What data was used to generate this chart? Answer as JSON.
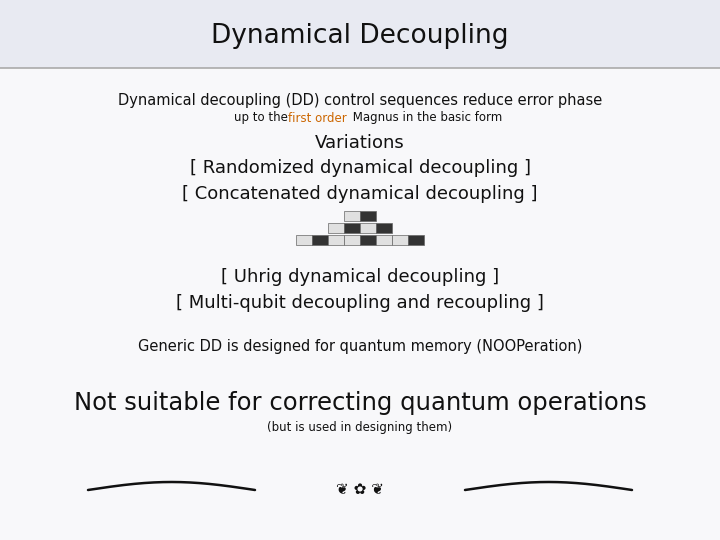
{
  "title": "Dynamical Decoupling",
  "title_bg": "#e8eaf2",
  "bg_color": "#f8f8fa",
  "line1": "Dynamical decoupling (DD) control sequences reduce error phase",
  "line2_pre": "up to the ",
  "line2_colored": "first order",
  "line2_post": " Magnus in the basic form",
  "line2_color": "#cc6600",
  "line3": "Variations",
  "line4": "[ Randomized dynamical decoupling ]",
  "line5": "[ Concatenated dynamical decoupling ]",
  "line6": "[ Uhrig dynamical decoupling ]",
  "line7": "[ Multi-qubit decoupling and recoupling ]",
  "line8": "Generic DD is designed for quantum memory (NOOPeration)",
  "line9": "Not suitable for correcting quantum operations",
  "line10": "(but is used in designing them)"
}
